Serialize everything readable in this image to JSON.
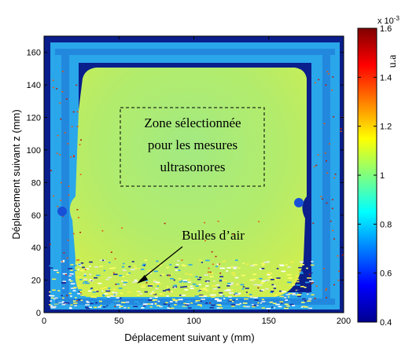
{
  "chart_data": {
    "type": "heatmap",
    "xlabel": "Déplacement suivant y (mm)",
    "ylabel": "Déplacement suivant z (mm)",
    "xlim": [
      0,
      200
    ],
    "ylim": [
      0,
      170
    ],
    "x_ticks": [
      "0",
      "50",
      "100",
      "150",
      "200"
    ],
    "y_ticks": [
      "0",
      "20",
      "40",
      "60",
      "80",
      "100",
      "120",
      "140",
      "160"
    ],
    "colorbar": {
      "label": "u.a",
      "exponent": "x 10-3",
      "range": [
        0.4,
        1.6
      ],
      "ticks": [
        "0.4",
        "0.6",
        "0.8",
        "1",
        "1.2",
        "1.4",
        "1.6"
      ],
      "colormap": "jet"
    },
    "annotations": {
      "zone": [
        "Zone sélectionnée",
        "pour les mesures",
        "ultrasonores"
      ],
      "bubbles": "Bulles d’air"
    },
    "regions": {
      "frame_outer_y": [
        3,
        205
      ],
      "frame_outer_z": [
        3,
        168
      ],
      "sample_level": 1.05,
      "frame_level": 0.68,
      "background_level": 0.42,
      "selected_zone_y": [
        55,
        162
      ],
      "selected_zone_z": [
        87,
        139
      ]
    }
  },
  "colors": {
    "background": "#0a1e8c",
    "frame": "#27a8ee",
    "sample": "#a0ec74",
    "sample_edge": "#d6ec4a",
    "bubble_red": "#b41e0a"
  }
}
